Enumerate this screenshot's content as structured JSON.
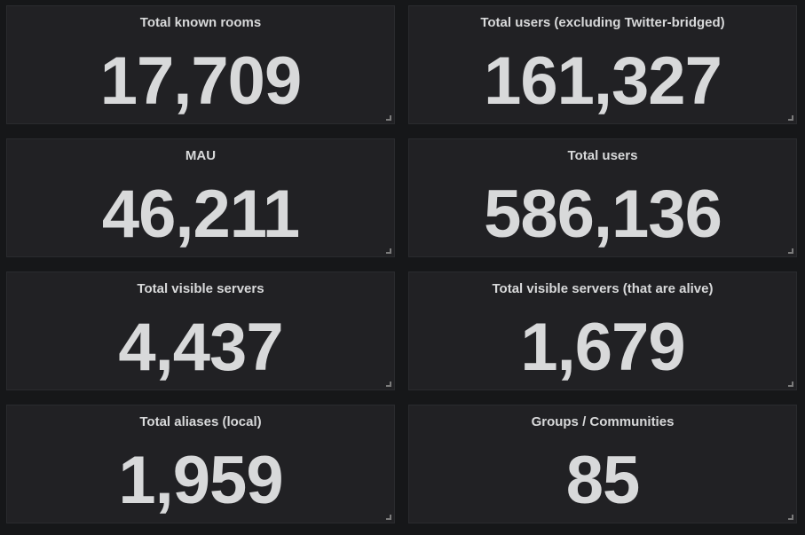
{
  "panels": [
    {
      "title": "Total known rooms",
      "value": "17,709"
    },
    {
      "title": "Total users (excluding Twitter-bridged)",
      "value": "161,327"
    },
    {
      "title": "MAU",
      "value": "46,211"
    },
    {
      "title": "Total users",
      "value": "586,136"
    },
    {
      "title": "Total visible servers",
      "value": "4,437"
    },
    {
      "title": "Total visible servers (that are alive)",
      "value": "1,679"
    },
    {
      "title": "Total aliases (local)",
      "value": "1,959"
    },
    {
      "title": "Groups / Communities",
      "value": "85"
    }
  ],
  "colors": {
    "background": "#161719",
    "panel": "#212124",
    "text": "#d8d9da",
    "handle": "#7b7b7b"
  },
  "icons": {
    "resize": "resize-handle-icon"
  }
}
